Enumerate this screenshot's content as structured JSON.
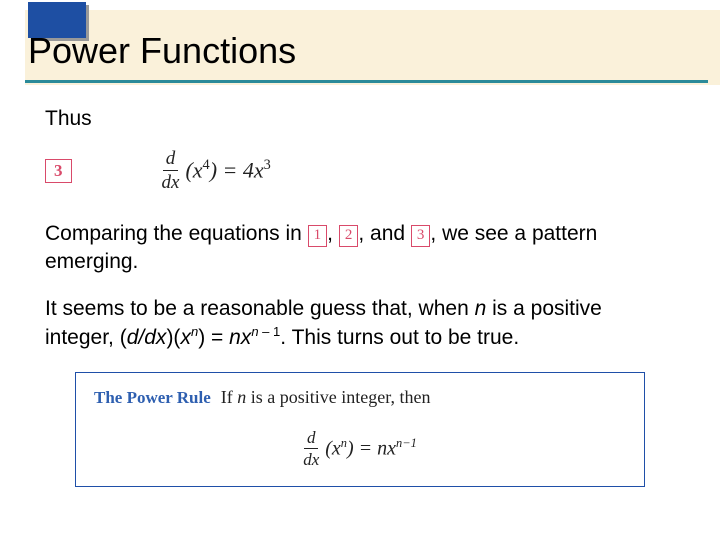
{
  "header": {
    "title": "Power Functions",
    "accent_color": "#1e4fa3",
    "band_color": "#faf1da",
    "underline_color": "#2b8a99"
  },
  "body": {
    "intro": "Thus",
    "eq_number": "3",
    "eq_frac_top": "d",
    "eq_frac_bot": "dx",
    "eq_lhs_open": "(",
    "eq_lhs_var": "x",
    "eq_lhs_exp": "4",
    "eq_lhs_close": ") =",
    "eq_rhs_coef": "4",
    "eq_rhs_var": "x",
    "eq_rhs_exp": "3",
    "compare_a": "Comparing the equations in ",
    "box1": "1",
    "sep12": ", ",
    "box2": "2",
    "sep23": ", ",
    "compare_mid": " and ",
    "box3": "3",
    "sep3": ", ",
    "compare_b": " we see a pattern emerging.",
    "guess_a": "It seems to be a reasonable guess that, when ",
    "guess_n": "n",
    "guess_b": " is a positive integer, (",
    "guess_d": "d",
    "guess_slash": "/",
    "guess_dx": "dx",
    "guess_c": ")(",
    "guess_x": "x",
    "guess_xexp": "n",
    "guess_eq": ") = ",
    "guess_nx": "nx",
    "guess_nxexp": "n",
    "guess_nxexp2": " – 1",
    "guess_end": ". This turns out to be true."
  },
  "rule": {
    "title": "The Power Rule",
    "text_a": "If ",
    "text_n": "n",
    "text_b": " is a positive integer, then",
    "frac_top": "d",
    "frac_bot": "dx",
    "lparen": "(",
    "var": "x",
    "exp": "n",
    "rparen_eq": ") =",
    "rhs_nx": "nx",
    "rhs_exp": "n−1",
    "box_border": "#1f4fa8",
    "title_color": "#2e5fb0",
    "num_box_color": "#d94a6a"
  }
}
